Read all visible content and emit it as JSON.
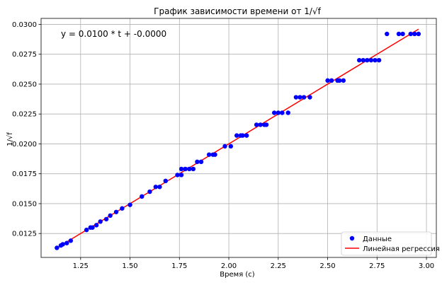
{
  "chart_data": {
    "type": "scatter",
    "title": "График зависимости времени от 1/√f",
    "xlabel": "Время (с)",
    "ylabel": "1/√f",
    "xlim": [
      1.05,
      3.05
    ],
    "ylim": [
      0.0105,
      0.0305
    ],
    "x_ticks": [
      1.25,
      1.5,
      1.75,
      2.0,
      2.25,
      2.5,
      2.75,
      3.0
    ],
    "x_tick_labels": [
      "1.25",
      "1.50",
      "1.75",
      "2.00",
      "2.25",
      "2.50",
      "2.75",
      "3.00"
    ],
    "y_ticks": [
      0.0125,
      0.015,
      0.0175,
      0.02,
      0.0225,
      0.025,
      0.0275,
      0.03
    ],
    "y_tick_labels": [
      "0.0125",
      "0.0150",
      "0.0175",
      "0.0200",
      "0.0225",
      "0.0250",
      "0.0275",
      "0.0300"
    ],
    "grid": true,
    "legend_position": "bottom-right",
    "annotation": "y = 0.0100 * t + -0.0000",
    "series": [
      {
        "name": "Данные",
        "kind": "scatter",
        "color": "#0000ff",
        "points": [
          [
            1.13,
            0.0113
          ],
          [
            1.15,
            0.0115
          ],
          [
            1.16,
            0.0116
          ],
          [
            1.18,
            0.0117
          ],
          [
            1.2,
            0.0119
          ],
          [
            1.28,
            0.0128
          ],
          [
            1.3,
            0.013
          ],
          [
            1.31,
            0.013
          ],
          [
            1.33,
            0.0132
          ],
          [
            1.35,
            0.0135
          ],
          [
            1.38,
            0.0137
          ],
          [
            1.4,
            0.014
          ],
          [
            1.43,
            0.0143
          ],
          [
            1.46,
            0.0146
          ],
          [
            1.5,
            0.0149
          ],
          [
            1.56,
            0.0156
          ],
          [
            1.6,
            0.016
          ],
          [
            1.63,
            0.0164
          ],
          [
            1.65,
            0.0164
          ],
          [
            1.68,
            0.0169
          ],
          [
            1.74,
            0.0174
          ],
          [
            1.76,
            0.0174
          ],
          [
            1.76,
            0.0179
          ],
          [
            1.78,
            0.0179
          ],
          [
            1.8,
            0.0179
          ],
          [
            1.82,
            0.0179
          ],
          [
            1.84,
            0.0185
          ],
          [
            1.86,
            0.0185
          ],
          [
            1.9,
            0.0191
          ],
          [
            1.92,
            0.0191
          ],
          [
            1.93,
            0.0191
          ],
          [
            1.98,
            0.0198
          ],
          [
            2.01,
            0.0198
          ],
          [
            2.04,
            0.0207
          ],
          [
            2.06,
            0.0207
          ],
          [
            2.07,
            0.0207
          ],
          [
            2.09,
            0.0207
          ],
          [
            2.14,
            0.0216
          ],
          [
            2.16,
            0.0216
          ],
          [
            2.18,
            0.0216
          ],
          [
            2.19,
            0.0216
          ],
          [
            2.23,
            0.0226
          ],
          [
            2.25,
            0.0226
          ],
          [
            2.27,
            0.0226
          ],
          [
            2.3,
            0.0226
          ],
          [
            2.34,
            0.0239
          ],
          [
            2.36,
            0.0239
          ],
          [
            2.38,
            0.0239
          ],
          [
            2.41,
            0.0239
          ],
          [
            2.5,
            0.0253
          ],
          [
            2.52,
            0.0253
          ],
          [
            2.55,
            0.0253
          ],
          [
            2.56,
            0.0253
          ],
          [
            2.58,
            0.0253
          ],
          [
            2.66,
            0.027
          ],
          [
            2.68,
            0.027
          ],
          [
            2.7,
            0.027
          ],
          [
            2.72,
            0.027
          ],
          [
            2.74,
            0.027
          ],
          [
            2.76,
            0.027
          ],
          [
            2.8,
            0.0292
          ],
          [
            2.86,
            0.0292
          ],
          [
            2.88,
            0.0292
          ],
          [
            2.92,
            0.0292
          ],
          [
            2.94,
            0.0292
          ],
          [
            2.96,
            0.0292
          ]
        ]
      },
      {
        "name": "Линейная регрессия",
        "kind": "line",
        "color": "#ff0000",
        "x": [
          1.13,
          2.96
        ],
        "y": [
          0.0113,
          0.0296
        ]
      }
    ]
  }
}
